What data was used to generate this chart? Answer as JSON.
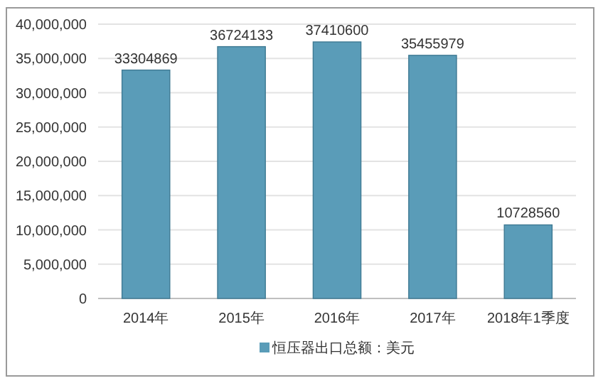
{
  "chart_data": {
    "type": "bar",
    "categories": [
      "2014年",
      "2015年",
      "2016年",
      "2017年",
      "2018年1季度"
    ],
    "series": [
      {
        "name": "恒压器出口总额：美元",
        "color": "#5a9cb8",
        "values": [
          33304869,
          36724133,
          37410600,
          35455979,
          10728560
        ]
      }
    ],
    "ylim": [
      0,
      40000000
    ],
    "yticks": [
      0,
      {
        "value": 5000000,
        "label": "5,000,000"
      },
      {
        "value": 10000000,
        "label": "10,000,000"
      },
      {
        "value": 15000000,
        "label": "15,000,000"
      },
      {
        "value": 20000000,
        "label": "20,000,000"
      },
      {
        "value": 25000000,
        "label": "25,000,000"
      },
      {
        "value": 30000000,
        "label": "30,000,000"
      },
      {
        "value": 35000000,
        "label": "35,000,000"
      },
      {
        "value": 40000000,
        "label": "40,000,000"
      }
    ],
    "grid": "y",
    "data_labels": true,
    "legend": "bottom"
  }
}
